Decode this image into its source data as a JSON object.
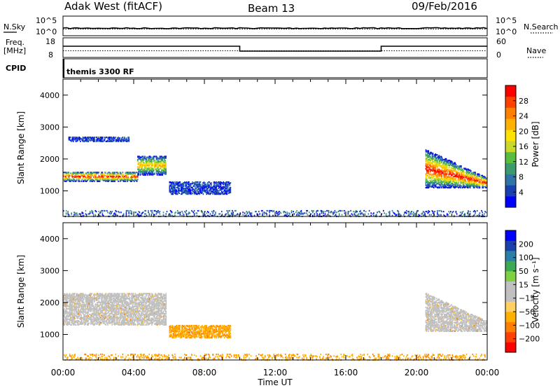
{
  "header": {
    "station": "Adak West (fitACF)",
    "beam": "Beam 13",
    "date": "09/Feb/2016"
  },
  "strip": {
    "nsky_label": "N.Sky",
    "nsearch_label": "N.Search",
    "freq_label": "Freq.",
    "freq_unit": "[MHz]",
    "nave_label": "Nave",
    "cpid_label": "CPID",
    "program": "themis 3300 RF",
    "nsky_ticks": [
      "10^5",
      "10^0"
    ],
    "nsearch_ticks": [
      "10^5",
      "10^0"
    ],
    "freq_ticks": [
      "18",
      "8"
    ],
    "nave_ticks": [
      "60",
      "0"
    ]
  },
  "chart_data": [
    {
      "type": "heatmap",
      "panel": "power",
      "ylabel": "Slant Range [km]",
      "ylim": [
        200,
        4500
      ],
      "xlim_hours": [
        0,
        24
      ],
      "yticks": [
        1000,
        2000,
        3000,
        4000
      ],
      "colorbar": {
        "label": "Power [dB]",
        "ticks": [
          "28",
          "24",
          "20",
          "16",
          "12",
          "8",
          "4"
        ],
        "colors": [
          "#0000ff",
          "#1a3fb0",
          "#2f74a8",
          "#3c9a6e",
          "#57bf3d",
          "#c8d92a",
          "#ffe000",
          "#ffb000",
          "#ff8000",
          "#ff4000",
          "#ff0000"
        ]
      },
      "regions": [
        {
          "t": [
            0.0,
            4.2
          ],
          "r": [
            1300,
            1600
          ],
          "level": "high"
        },
        {
          "t": [
            4.2,
            5.8
          ],
          "r": [
            1500,
            2100
          ],
          "level": "mid"
        },
        {
          "t": [
            0.3,
            3.7
          ],
          "r": [
            2550,
            2700
          ],
          "level": "low"
        },
        {
          "t": [
            6.0,
            9.5
          ],
          "r": [
            900,
            1300
          ],
          "level": "low"
        },
        {
          "t": [
            20.5,
            24.0
          ],
          "r": [
            1100,
            2300
          ],
          "level": "high"
        },
        {
          "t": [
            0.0,
            24.0
          ],
          "r": [
            200,
            400
          ],
          "level": "ground"
        }
      ]
    },
    {
      "type": "heatmap",
      "panel": "velocity",
      "ylabel": "Slant Range [km]",
      "ylim": [
        200,
        4500
      ],
      "xlim_hours": [
        0,
        24
      ],
      "yticks": [
        1000,
        2000,
        3000,
        4000
      ],
      "xticks": [
        "00:00",
        "04:00",
        "08:00",
        "12:00",
        "16:00",
        "20:00",
        "00:00"
      ],
      "xlabel": "Time UT",
      "colorbar": {
        "label": "Velocity [m s⁻¹]",
        "ticks": [
          "200",
          "100",
          "50",
          "15",
          "−15",
          "−50",
          "−100",
          "−200"
        ],
        "colors": [
          "#ff0000",
          "#ff4000",
          "#ff8000",
          "#ffb000",
          "#ffd060",
          "#c0c0c0",
          "#c0c0c0",
          "#80d040",
          "#3caa50",
          "#2a7fa8",
          "#1a40b0",
          "#0000ff"
        ]
      },
      "regions": [
        {
          "t": [
            0.0,
            5.8
          ],
          "r": [
            1300,
            2300
          ],
          "level": "gray"
        },
        {
          "t": [
            6.0,
            9.5
          ],
          "r": [
            900,
            1300
          ],
          "level": "orange"
        },
        {
          "t": [
            20.5,
            24.0
          ],
          "r": [
            1100,
            2300
          ],
          "level": "gray"
        },
        {
          "t": [
            0.0,
            24.0
          ],
          "r": [
            200,
            400
          ],
          "level": "orange"
        }
      ]
    }
  ]
}
